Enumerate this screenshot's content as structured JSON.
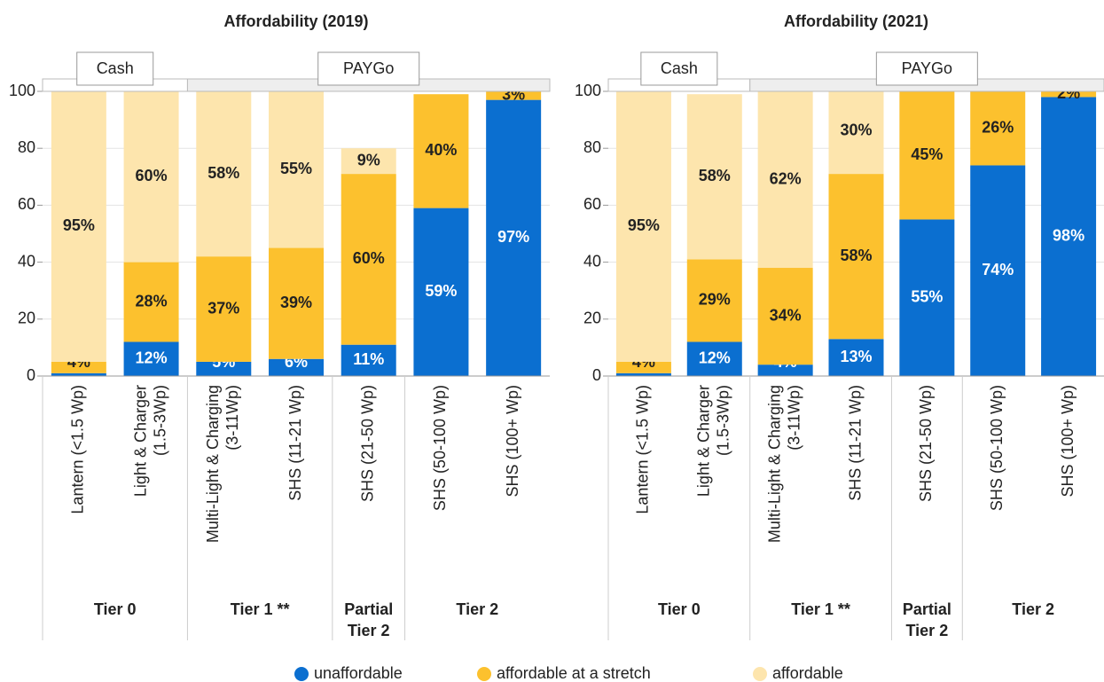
{
  "chart_data": [
    {
      "type": "bar",
      "stacked": true,
      "title": "Affordability (2019)",
      "payment_groups": [
        {
          "label": "Cash",
          "tiers": [
            {
              "label": [
                "Tier 0"
              ],
              "categories": [
                [
                  "Lantern  (<1.5 Wp)"
                ],
                [
                  "Light & Charger",
                  "(1.5-3Wp)"
                ]
              ]
            }
          ]
        },
        {
          "label": "PAYGo",
          "tiers": [
            {
              "label": [
                "Tier 1 **"
              ],
              "categories": [
                [
                  "Multi-Light & Charging",
                  "(3-11Wp)"
                ],
                [
                  "SHS  (11-21 Wp)"
                ]
              ]
            },
            {
              "label": [
                "Partial",
                "Tier 2"
              ],
              "categories": [
                [
                  "SHS  (21-50 Wp)"
                ]
              ]
            },
            {
              "label": [
                "Tier 2"
              ],
              "categories": [
                [
                  "SHS  (50-100 Wp)"
                ],
                [
                  "SHS  (100+ Wp)"
                ]
              ]
            }
          ]
        }
      ],
      "series": [
        {
          "name": "unaffordable",
          "color": "#0b6fd0",
          "values": [
            1,
            12,
            5,
            6,
            11,
            59,
            97
          ],
          "value_labels": [
            null,
            "12%",
            "5%",
            "6%",
            "11%",
            "59%",
            "97%"
          ]
        },
        {
          "name": "affordable at a stretch",
          "color": "#fcc12e",
          "values": [
            4,
            28,
            37,
            39,
            60,
            40,
            3
          ],
          "value_labels": [
            "4%",
            "28%",
            "37%",
            "39%",
            "60%",
            "40%",
            "3%"
          ]
        },
        {
          "name": "affordable",
          "color": "#fde5ad",
          "values": [
            95,
            60,
            58,
            55,
            9,
            0,
            0
          ],
          "value_labels": [
            "95%",
            "60%",
            "58%",
            "55%",
            "9%",
            null,
            null
          ]
        }
      ],
      "ylim": [
        0,
        100
      ],
      "yticks": [
        0,
        20,
        40,
        60,
        80,
        100
      ],
      "grid": true
    },
    {
      "type": "bar",
      "stacked": true,
      "title": "Affordability (2021)",
      "payment_groups": [
        {
          "label": "Cash",
          "tiers": [
            {
              "label": [
                "Tier 0"
              ],
              "categories": [
                [
                  "Lantern  (<1.5 Wp)"
                ],
                [
                  "Light & Charger",
                  "(1.5-3Wp)"
                ]
              ]
            }
          ]
        },
        {
          "label": "PAYGo",
          "tiers": [
            {
              "label": [
                "Tier 1 **"
              ],
              "categories": [
                [
                  "Multi-Light & Charging",
                  "(3-11Wp)"
                ],
                [
                  "SHS  (11-21 Wp)"
                ]
              ]
            },
            {
              "label": [
                "Partial",
                "Tier 2"
              ],
              "categories": [
                [
                  "SHS  (21-50 Wp)"
                ]
              ]
            },
            {
              "label": [
                "Tier 2"
              ],
              "categories": [
                [
                  "SHS  (50-100 Wp)"
                ],
                [
                  "SHS  (100+ Wp)"
                ]
              ]
            }
          ]
        }
      ],
      "series": [
        {
          "name": "unaffordable",
          "color": "#0b6fd0",
          "values": [
            1,
            12,
            4,
            13,
            55,
            74,
            98
          ],
          "value_labels": [
            null,
            "12%",
            "4%",
            "13%",
            "55%",
            "74%",
            "98%"
          ]
        },
        {
          "name": "affordable at a stretch",
          "color": "#fcc12e",
          "values": [
            4,
            29,
            34,
            58,
            45,
            26,
            2
          ],
          "value_labels": [
            "4%",
            "29%",
            "34%",
            "58%",
            "45%",
            "26%",
            "2%"
          ]
        },
        {
          "name": "affordable",
          "color": "#fde5ad",
          "values": [
            95,
            58,
            62,
            30,
            0,
            0,
            0
          ],
          "value_labels": [
            "95%",
            "58%",
            "62%",
            "30%",
            null,
            null,
            null
          ]
        }
      ],
      "ylim": [
        0,
        100
      ],
      "yticks": [
        0,
        20,
        40,
        60,
        80,
        100
      ],
      "grid": true
    }
  ]
}
